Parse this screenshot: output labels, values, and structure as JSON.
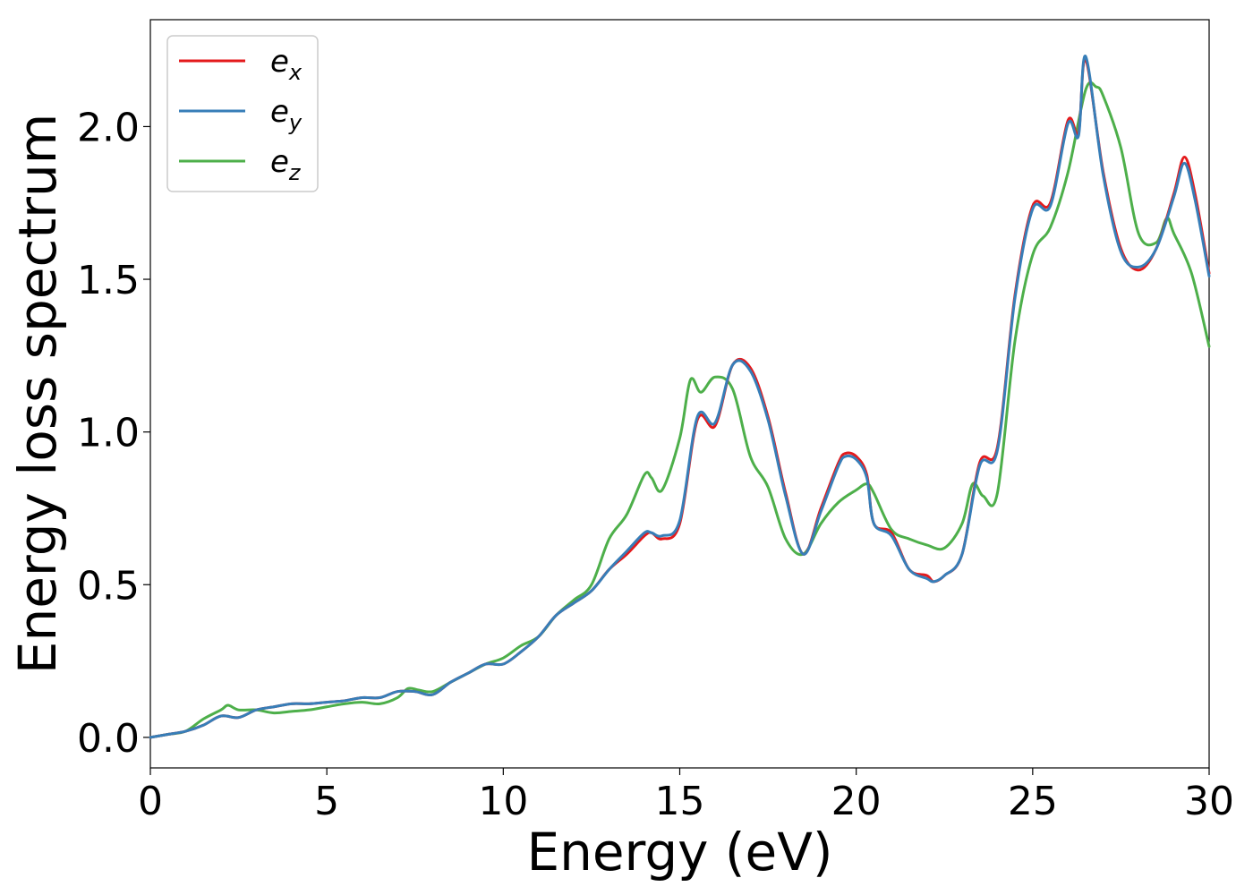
{
  "chart_data": {
    "type": "line",
    "xlabel": "Energy (eV)",
    "ylabel": "Energy loss spectrum",
    "xlim": [
      0,
      30
    ],
    "ylim": [
      -0.1,
      2.35
    ],
    "x_ticks": [
      "0",
      "5",
      "10",
      "15",
      "20",
      "25",
      "30"
    ],
    "y_ticks": [
      "0.0",
      "0.5",
      "1.0",
      "1.5",
      "2.0"
    ],
    "grid": false,
    "legend_position": "top-left",
    "series": [
      {
        "name": "e_x",
        "legend_base": "e",
        "legend_sub": "x",
        "color": "#e41a1c",
        "x": [
          0,
          0.5,
          1,
          1.5,
          2,
          2.5,
          3,
          3.5,
          4,
          4.5,
          5,
          5.5,
          6,
          6.5,
          7,
          7.5,
          8,
          8.5,
          9,
          9.5,
          10,
          10.5,
          11,
          11.5,
          12,
          12.5,
          13,
          13.5,
          14,
          14.2,
          14.5,
          15,
          15.5,
          16,
          16.5,
          17,
          17.5,
          18,
          18.5,
          19,
          19.5,
          19.7,
          20,
          20.3,
          20.5,
          21,
          21.5,
          22,
          22.2,
          22.5,
          23,
          23.5,
          24,
          24.5,
          25,
          25.5,
          26,
          26.3,
          26.5,
          27,
          27.5,
          28,
          28.5,
          29,
          29.3,
          29.6,
          30
        ],
        "y": [
          0,
          0.01,
          0.02,
          0.04,
          0.07,
          0.065,
          0.09,
          0.1,
          0.11,
          0.11,
          0.115,
          0.12,
          0.13,
          0.13,
          0.15,
          0.15,
          0.14,
          0.18,
          0.21,
          0.24,
          0.24,
          0.28,
          0.33,
          0.4,
          0.44,
          0.48,
          0.55,
          0.6,
          0.66,
          0.67,
          0.65,
          0.7,
          1.04,
          1.02,
          1.22,
          1.21,
          1.05,
          0.8,
          0.6,
          0.75,
          0.9,
          0.93,
          0.92,
          0.86,
          0.7,
          0.67,
          0.55,
          0.53,
          0.51,
          0.53,
          0.6,
          0.9,
          0.95,
          1.45,
          1.74,
          1.75,
          2.02,
          1.98,
          2.22,
          1.85,
          1.6,
          1.53,
          1.6,
          1.78,
          1.9,
          1.78,
          1.52
        ]
      },
      {
        "name": "e_y",
        "legend_base": "e",
        "legend_sub": "y",
        "color": "#377eb8",
        "x": [
          0,
          0.5,
          1,
          1.5,
          2,
          2.5,
          3,
          3.5,
          4,
          4.5,
          5,
          5.5,
          6,
          6.5,
          7,
          7.5,
          8,
          8.5,
          9,
          9.5,
          10,
          10.5,
          11,
          11.5,
          12,
          12.5,
          13,
          13.5,
          14,
          14.2,
          14.5,
          15,
          15.5,
          16,
          16.5,
          17,
          17.5,
          18,
          18.5,
          19,
          19.5,
          19.7,
          20,
          20.3,
          20.5,
          21,
          21.5,
          22,
          22.2,
          22.5,
          23,
          23.5,
          24,
          24.5,
          25,
          25.5,
          26,
          26.3,
          26.5,
          27,
          27.5,
          28,
          28.5,
          29,
          29.3,
          29.6,
          30
        ],
        "y": [
          0,
          0.01,
          0.02,
          0.04,
          0.07,
          0.065,
          0.09,
          0.1,
          0.11,
          0.11,
          0.115,
          0.12,
          0.13,
          0.13,
          0.15,
          0.15,
          0.14,
          0.18,
          0.21,
          0.24,
          0.24,
          0.28,
          0.33,
          0.4,
          0.44,
          0.48,
          0.55,
          0.61,
          0.67,
          0.67,
          0.66,
          0.71,
          1.05,
          1.03,
          1.22,
          1.2,
          1.04,
          0.79,
          0.6,
          0.74,
          0.89,
          0.92,
          0.91,
          0.85,
          0.7,
          0.66,
          0.55,
          0.52,
          0.51,
          0.53,
          0.6,
          0.89,
          0.94,
          1.44,
          1.73,
          1.74,
          2.01,
          1.97,
          2.23,
          1.84,
          1.59,
          1.54,
          1.6,
          1.77,
          1.88,
          1.76,
          1.51
        ]
      },
      {
        "name": "e_z",
        "legend_base": "e",
        "legend_sub": "z",
        "color": "#4daf4a",
        "x": [
          0,
          0.5,
          1,
          1.5,
          2,
          2.2,
          2.5,
          3,
          3.5,
          4,
          4.5,
          5,
          5.5,
          6,
          6.5,
          7,
          7.3,
          7.6,
          8,
          8.5,
          9,
          9.5,
          10,
          10.5,
          11,
          11.5,
          12,
          12.5,
          13,
          13.5,
          14,
          14.2,
          14.5,
          15,
          15.3,
          15.6,
          16,
          16.5,
          17,
          17.5,
          18,
          18.5,
          19,
          19.5,
          20,
          20.3,
          20.5,
          21,
          21.5,
          22,
          22.5,
          23,
          23.3,
          23.6,
          24,
          24.5,
          25,
          25.5,
          26,
          26.5,
          26.8,
          27,
          27.5,
          28,
          28.5,
          28.8,
          29,
          29.5,
          30
        ],
        "y": [
          0,
          0.01,
          0.02,
          0.06,
          0.09,
          0.105,
          0.09,
          0.09,
          0.08,
          0.085,
          0.09,
          0.1,
          0.11,
          0.115,
          0.11,
          0.13,
          0.16,
          0.155,
          0.15,
          0.18,
          0.21,
          0.24,
          0.26,
          0.3,
          0.33,
          0.4,
          0.45,
          0.5,
          0.65,
          0.73,
          0.86,
          0.85,
          0.81,
          0.98,
          1.17,
          1.13,
          1.18,
          1.14,
          0.92,
          0.82,
          0.65,
          0.6,
          0.7,
          0.77,
          0.81,
          0.83,
          0.8,
          0.68,
          0.65,
          0.63,
          0.62,
          0.7,
          0.83,
          0.79,
          0.8,
          1.3,
          1.58,
          1.67,
          1.85,
          2.12,
          2.13,
          2.1,
          1.93,
          1.65,
          1.62,
          1.7,
          1.65,
          1.52,
          1.28
        ]
      }
    ]
  }
}
